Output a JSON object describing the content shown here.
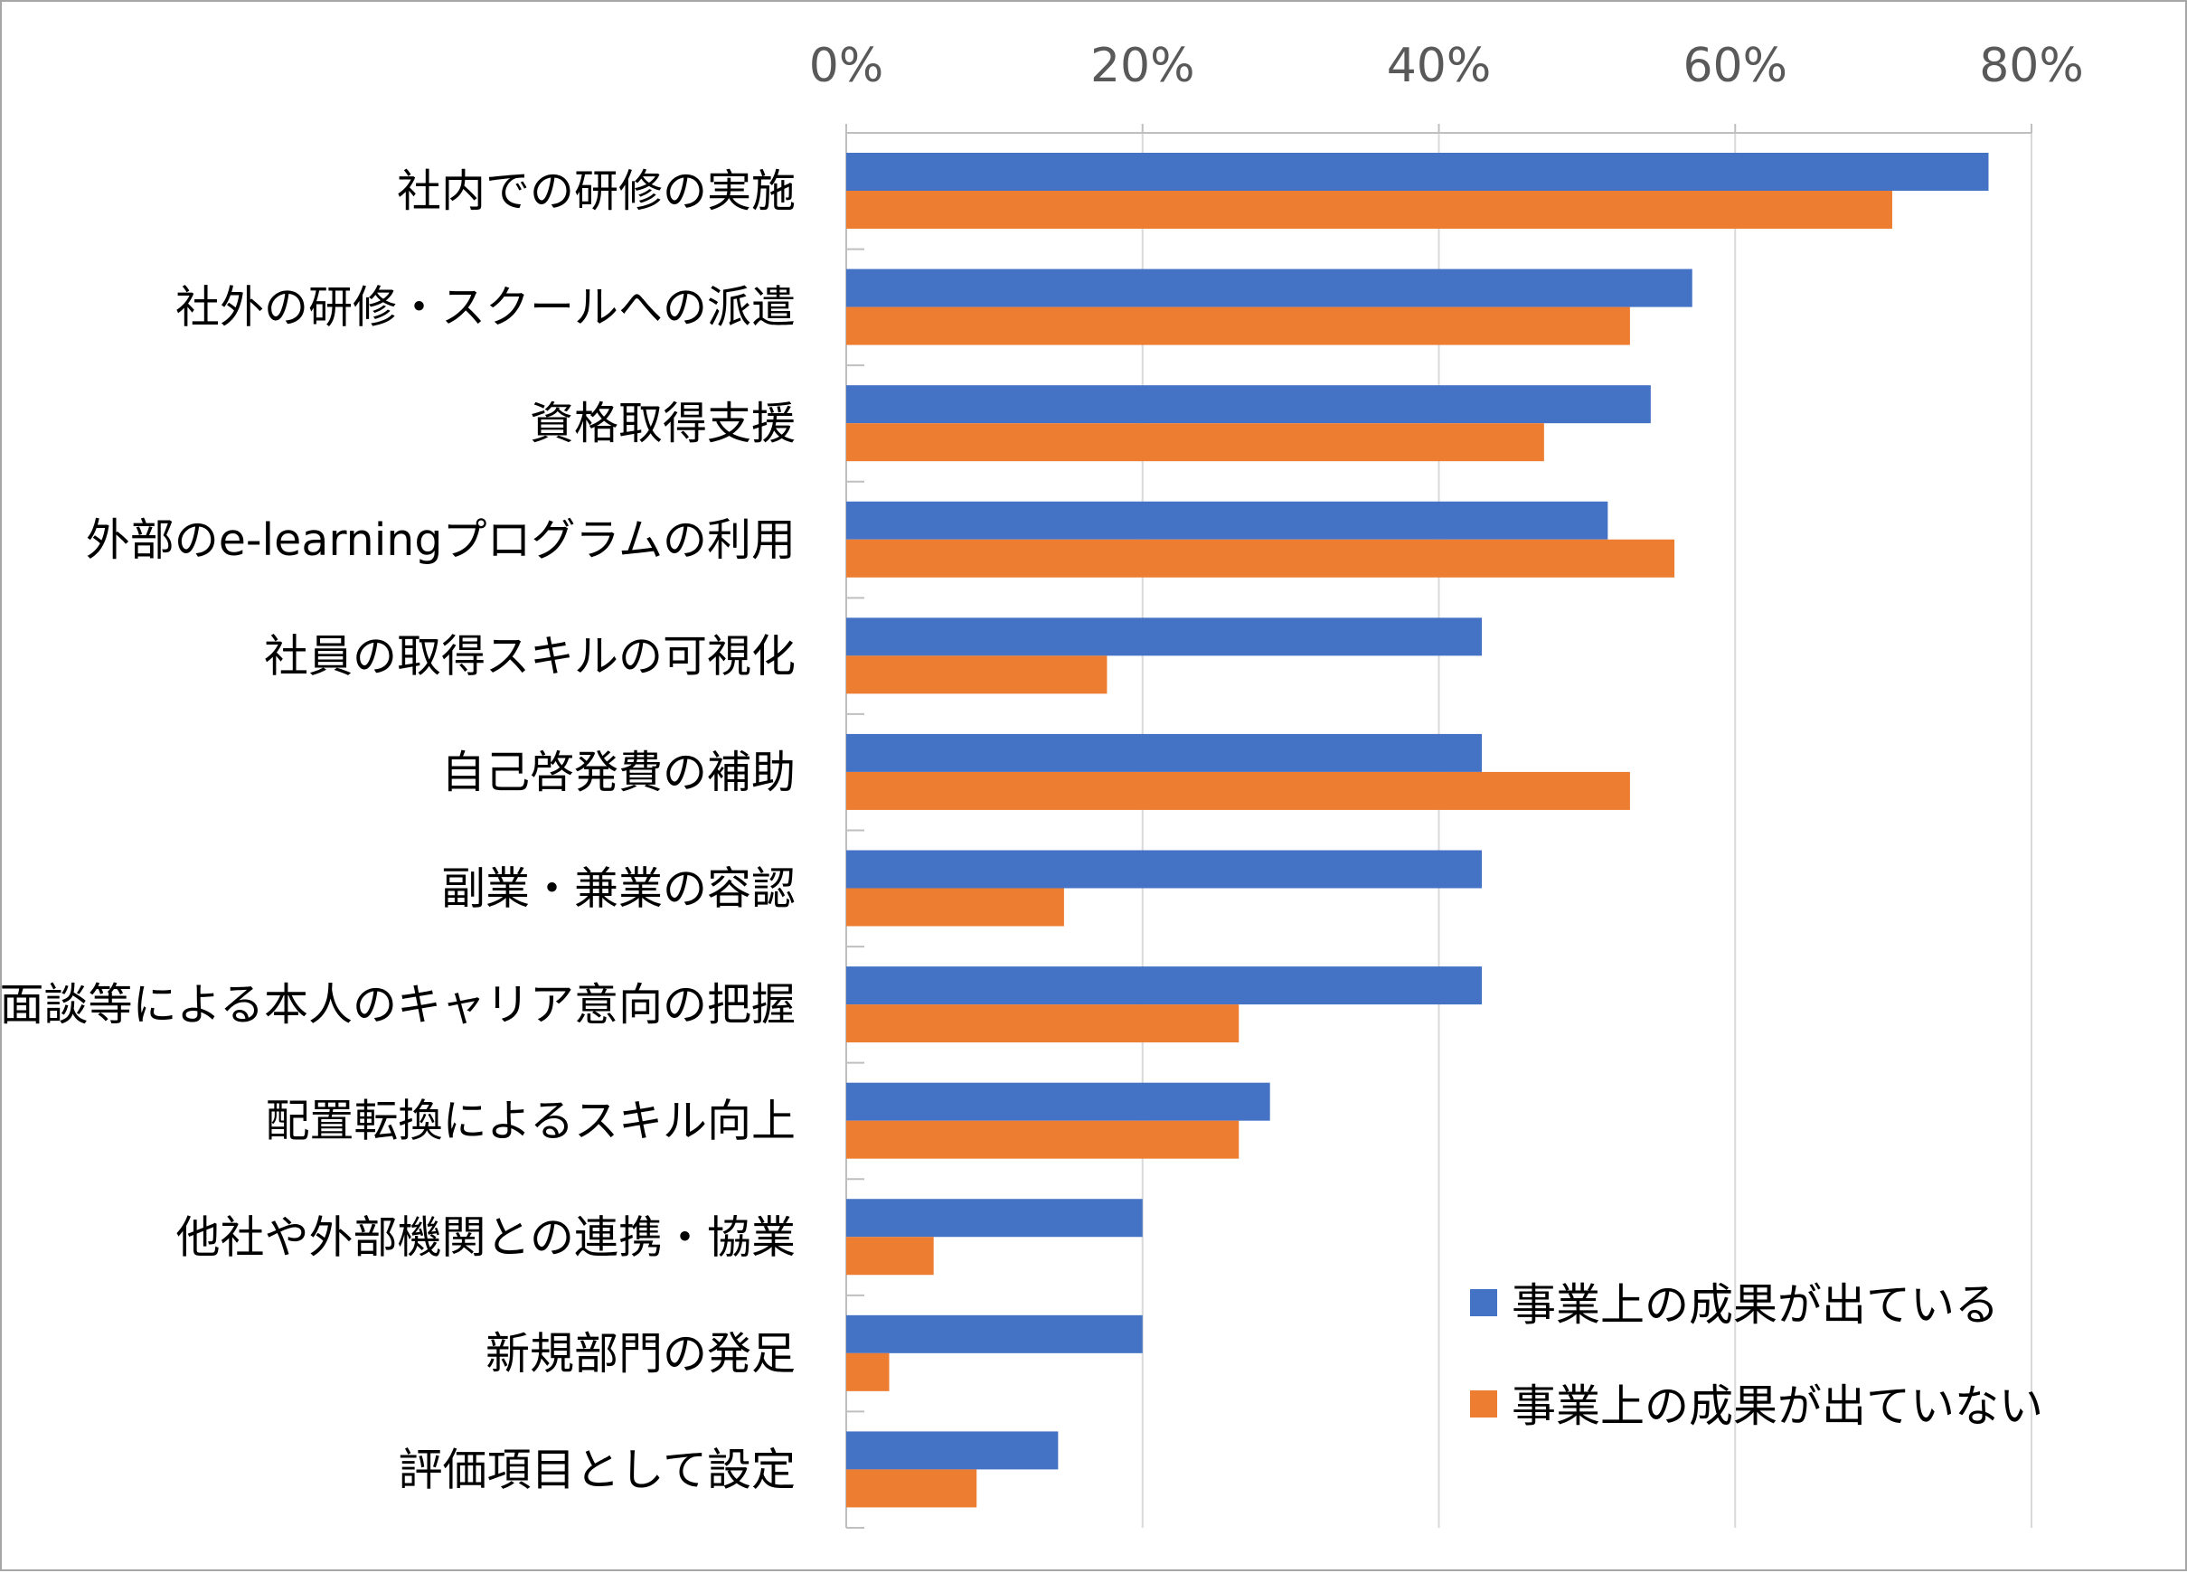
{
  "chart_data": {
    "type": "bar",
    "orientation": "horizontal",
    "categories": [
      "社内での研修の実施",
      "社外の研修・スクールへの派遣",
      "資格取得支援",
      "外部のe-learningプログラムの利用",
      "社員の取得スキルの可視化",
      "自己啓発費の補助",
      "副業・兼業の容認",
      "面談等による本人のキャリア意向の把握",
      "配置転換によるスキル向上",
      "他社や外部機関との連携・協業",
      "新規部門の発足",
      "評価項目として設定"
    ],
    "series": [
      {
        "name": "事業上の成果が出ている",
        "color": "#4472c4",
        "values": [
          77.1,
          57.1,
          54.3,
          51.4,
          42.9,
          42.9,
          42.9,
          42.9,
          28.6,
          20.0,
          20.0,
          14.3
        ]
      },
      {
        "name": "事業上の成果が出ていない",
        "color": "#ed7d31",
        "values": [
          70.6,
          52.9,
          47.1,
          55.9,
          17.6,
          52.9,
          14.7,
          26.5,
          26.5,
          5.9,
          2.9,
          8.8
        ]
      }
    ],
    "xlim": [
      0,
      80
    ],
    "xticks": [
      "0%",
      "20%",
      "40%",
      "60%",
      "80%"
    ],
    "xtick_values": [
      0,
      20,
      40,
      60,
      80
    ],
    "axis_position": "top",
    "grid": true,
    "legend_position": "bottom-right"
  }
}
